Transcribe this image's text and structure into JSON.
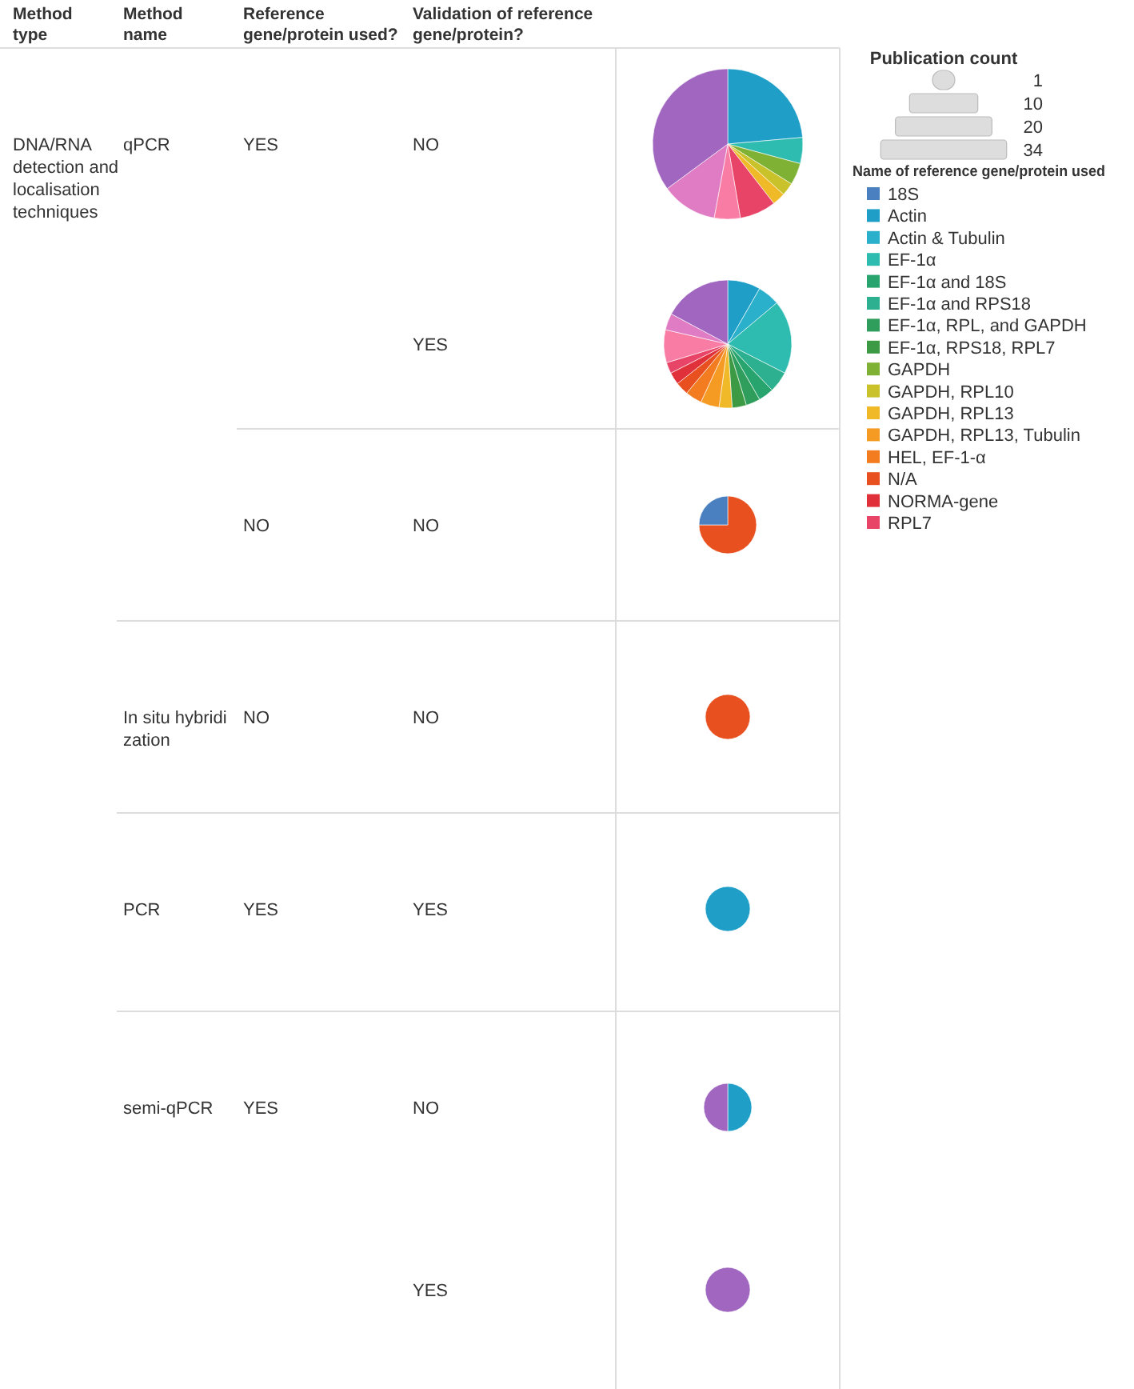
{
  "chart_data": [
    {
      "type": "other",
      "annotations": [
        "Method type",
        "Method name",
        "Reference gene/protein used?",
        "Validation of reference gene/protein?"
      ]
    },
    {
      "type": "pie",
      "annotations": [
        "DNA/RNA detection and localisation techniques",
        "qPCR",
        "YES",
        "NO"
      ],
      "values": [
        23.6,
        5.6,
        4.7,
        2.8,
        2.8,
        7.8,
        5.6,
        12,
        35.1
      ],
      "colors": [
        "#1f9fc8",
        "#2fbcb0",
        "#7fb135",
        "#c9c22b",
        "#f0b928",
        "#e84468",
        "#f87ca4",
        "#e07cc4",
        "#a066c0"
      ]
    },
    {
      "type": "pie",
      "annotations": [
        null,
        null,
        null,
        "YES"
      ],
      "values": [
        8.3,
        5.6,
        18.6,
        5.3,
        3.9,
        3.6,
        3.6,
        3.3,
        4.7,
        4.2,
        3.3,
        3.1,
        2.8,
        8.3,
        4.2,
        17.2
      ],
      "colors": [
        "#1f9fc8",
        "#2bb0cc",
        "#2fbcb0",
        "#2db08f",
        "#28a46e",
        "#2f9e5c",
        "#3c9a44",
        "#f0b928",
        "#f59b24",
        "#f37c20",
        "#e8501f",
        "#e0303a",
        "#e84468",
        "#f87ca4",
        "#e07cc4",
        "#a066c0"
      ]
    },
    {
      "type": "pie",
      "annotations": [
        null,
        null,
        "NO",
        "NO"
      ],
      "values": [
        75,
        25
      ],
      "colors": [
        "#e8501f",
        "#4a7fc0"
      ]
    },
    {
      "type": "pie",
      "annotations": [
        null,
        "In situ hybridization",
        "NO",
        "NO"
      ],
      "values": [
        100
      ],
      "colors": [
        "#e8501f"
      ]
    },
    {
      "type": "pie",
      "annotations": [
        null,
        "PCR",
        "YES",
        "YES"
      ],
      "values": [
        100
      ],
      "colors": [
        "#1f9fc8"
      ]
    },
    {
      "type": "pie",
      "annotations": [
        null,
        "semi-qPCR",
        "YES",
        "NO"
      ],
      "values": [
        50,
        50
      ],
      "colors": [
        "#1f9fc8",
        "#a066c0"
      ]
    },
    {
      "type": "pie",
      "annotations": [
        null,
        null,
        null,
        "YES"
      ],
      "values": [
        100
      ],
      "colors": [
        "#a066c0"
      ]
    },
    {
      "type": "other",
      "title": "Publication count",
      "annotations": [
        "1",
        "10",
        "20",
        "34"
      ],
      "legend_title": "Name of reference gene/protein used",
      "categories": [
        "18S",
        "Actin",
        "Actin & Tubulin",
        "EF-1α",
        "EF-1α and 18S",
        "EF-1α and RPS18",
        "EF-1α, RPL, and GAPDH",
        "EF-1α, RPS18, RPL7",
        "GAPDH",
        "GAPDH, RPL10",
        "GAPDH, RPL13",
        "GAPDH, RPL13, Tubulin",
        "HEL, EF-1-α",
        "N/A",
        "NORMA-gene",
        "RPL7"
      ],
      "colors": [
        "#4a7fc0",
        "#1f9fc8",
        "#2bb0cc",
        "#2fbcb0",
        "#28a46e",
        "#2db08f",
        "#2f9e5c",
        "#3c9a44",
        "#7fb135",
        "#c9c22b",
        "#f0b928",
        "#f59b24",
        "#f37c20",
        "#e8501f",
        "#e0303a",
        "#e84468"
      ]
    }
  ]
}
